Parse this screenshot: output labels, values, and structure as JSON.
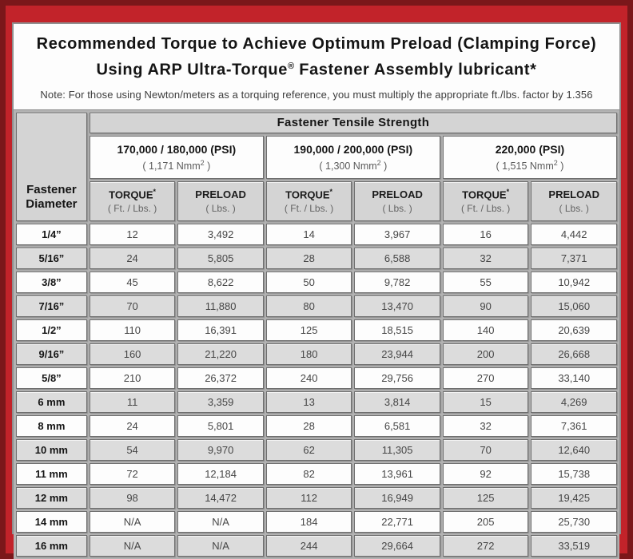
{
  "colors": {
    "maroon": "#7b171a",
    "frame-red": "#c2232a",
    "card-bg": "#fdfdfd",
    "card-border": "#8f8f8f",
    "hdr-gray": "#d4d4d4",
    "row-gray": "#dcdcdc",
    "gap-gray": "#b3b3b3",
    "cell-border": "#6e6e6e"
  },
  "header": {
    "title_line1": "Recommended Torque to Achieve Optimum Preload (Clamping Force)",
    "title_line2_pre": "Using ARP Ultra-Torque",
    "title_line2_sup": "®",
    "title_line2_post": " Fastener Assembly lubricant*",
    "note": "Note: For those using Newton/meters as a torquing reference, you must multiply the appropriate ft./lbs. factor by 1.356"
  },
  "table": {
    "tensile_header": "Fastener Tensile Strength",
    "corner": {
      "line1": "Fastener",
      "line2": "Diameter"
    },
    "groups": [
      {
        "psi": "170,000 / 180,000 (PSI)",
        "nmm_pre": "( 1,171 Nmm",
        "nmm_sup": "2",
        "nmm_post": " )"
      },
      {
        "psi": "190,000 / 200,000 (PSI)",
        "nmm_pre": "( 1,300 Nmm",
        "nmm_sup": "2",
        "nmm_post": " )"
      },
      {
        "psi": "220,000 (PSI)",
        "nmm_pre": "( 1,515 Nmm",
        "nmm_sup": "2",
        "nmm_post": " )"
      }
    ],
    "sub_headers": {
      "torque_label": "TORQUE",
      "torque_sup": "*",
      "torque_unit": "( Ft. / Lbs. )",
      "preload_label": "PRELOAD",
      "preload_unit": "( Lbs. )"
    },
    "rows": [
      {
        "diameter": "1/4”",
        "values": [
          "12",
          "3,492",
          "14",
          "3,967",
          "16",
          "4,442"
        ]
      },
      {
        "diameter": "5/16”",
        "values": [
          "24",
          "5,805",
          "28",
          "6,588",
          "32",
          "7,371"
        ]
      },
      {
        "diameter": "3/8”",
        "values": [
          "45",
          "8,622",
          "50",
          "9,782",
          "55",
          "10,942"
        ]
      },
      {
        "diameter": "7/16”",
        "values": [
          "70",
          "11,880",
          "80",
          "13,470",
          "90",
          "15,060"
        ]
      },
      {
        "diameter": "1/2”",
        "values": [
          "110",
          "16,391",
          "125",
          "18,515",
          "140",
          "20,639"
        ]
      },
      {
        "diameter": "9/16”",
        "values": [
          "160",
          "21,220",
          "180",
          "23,944",
          "200",
          "26,668"
        ]
      },
      {
        "diameter": "5/8”",
        "values": [
          "210",
          "26,372",
          "240",
          "29,756",
          "270",
          "33,140"
        ]
      },
      {
        "diameter": "6 mm",
        "values": [
          "11",
          "3,359",
          "13",
          "3,814",
          "15",
          "4,269"
        ]
      },
      {
        "diameter": "8 mm",
        "values": [
          "24",
          "5,801",
          "28",
          "6,581",
          "32",
          "7,361"
        ]
      },
      {
        "diameter": "10 mm",
        "values": [
          "54",
          "9,970",
          "62",
          "11,305",
          "70",
          "12,640"
        ]
      },
      {
        "diameter": "11 mm",
        "values": [
          "72",
          "12,184",
          "82",
          "13,961",
          "92",
          "15,738"
        ]
      },
      {
        "diameter": "12 mm",
        "values": [
          "98",
          "14,472",
          "112",
          "16,949",
          "125",
          "19,425"
        ]
      },
      {
        "diameter": "14 mm",
        "values": [
          "N/A",
          "N/A",
          "184",
          "22,771",
          "205",
          "25,730"
        ]
      },
      {
        "diameter": "16 mm",
        "values": [
          "N/A",
          "N/A",
          "244",
          "29,664",
          "272",
          "33,519"
        ]
      }
    ]
  }
}
